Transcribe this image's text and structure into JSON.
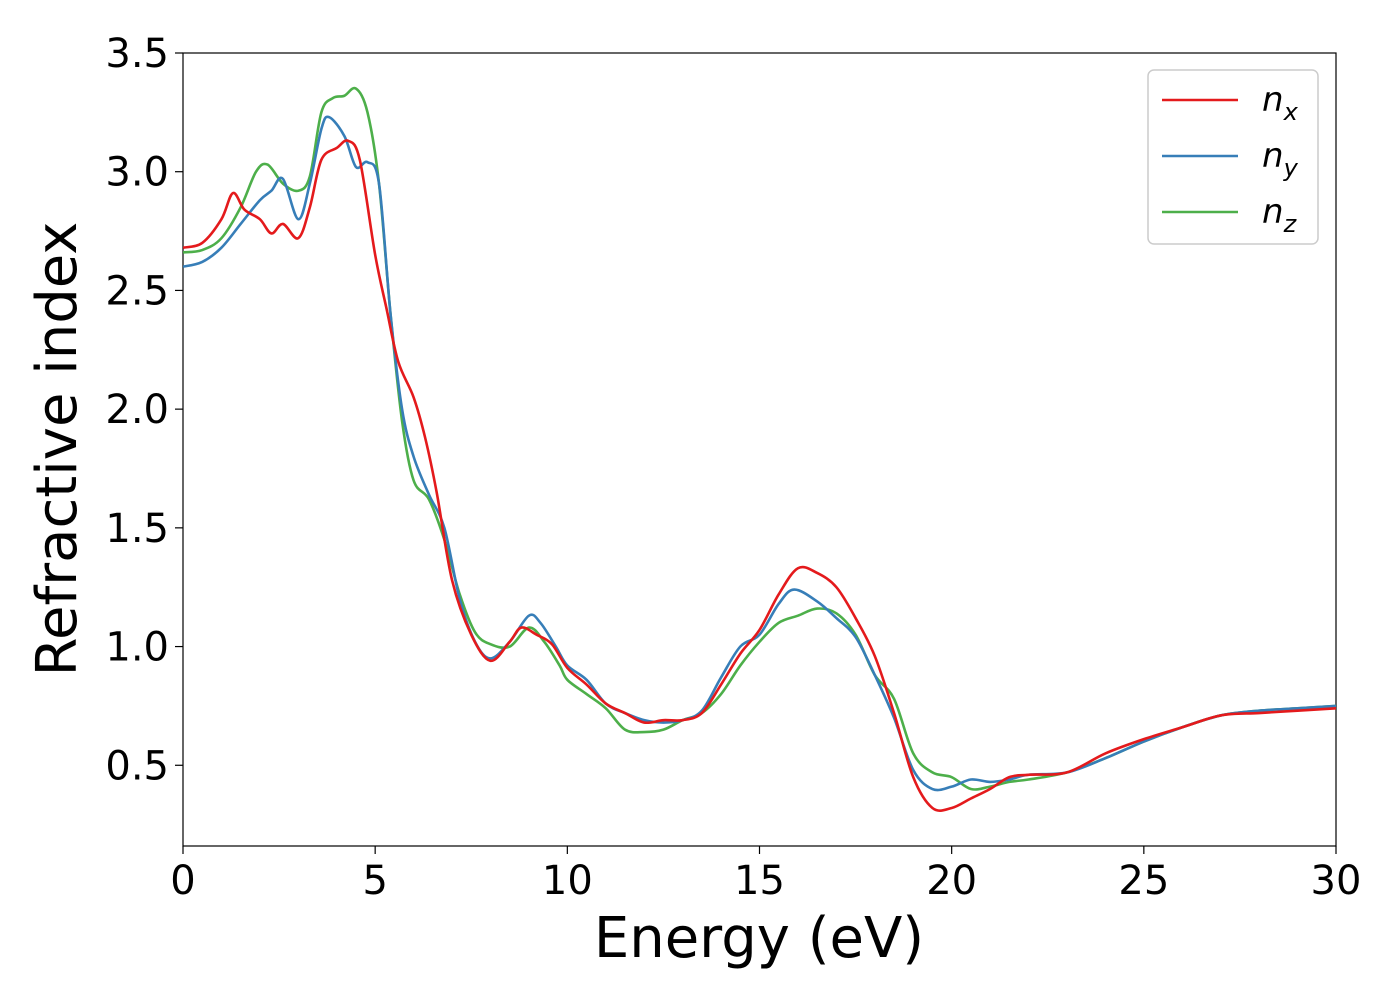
{
  "chart_data": {
    "type": "line",
    "title": "",
    "xlabel": "Energy (eV)",
    "ylabel": "Refractive index",
    "xlim": [
      0,
      30
    ],
    "ylim": [
      0.16,
      3.5
    ],
    "xticks": [
      0,
      5,
      10,
      15,
      20,
      25,
      30
    ],
    "xtick_labels": [
      "0",
      "5",
      "10",
      "15",
      "20",
      "25",
      "30"
    ],
    "yticks": [
      0.5,
      1.0,
      1.5,
      2.0,
      2.5,
      3.0,
      3.5
    ],
    "ytick_labels": [
      "0.5",
      "1.0",
      "1.5",
      "2.0",
      "2.5",
      "3.0",
      "3.5"
    ],
    "grid": false,
    "legend_position": "top-right",
    "series": [
      {
        "name": "n",
        "subscript": "x",
        "color": "#e41a1c",
        "points": [
          [
            0,
            2.68
          ],
          [
            0.5,
            2.7
          ],
          [
            1.0,
            2.8
          ],
          [
            1.3,
            2.91
          ],
          [
            1.6,
            2.84
          ],
          [
            2.0,
            2.8
          ],
          [
            2.3,
            2.74
          ],
          [
            2.6,
            2.78
          ],
          [
            3.0,
            2.72
          ],
          [
            3.3,
            2.85
          ],
          [
            3.6,
            3.05
          ],
          [
            4.0,
            3.1
          ],
          [
            4.3,
            3.13
          ],
          [
            4.6,
            3.05
          ],
          [
            5.0,
            2.65
          ],
          [
            5.3,
            2.42
          ],
          [
            5.6,
            2.2
          ],
          [
            6.0,
            2.05
          ],
          [
            6.3,
            1.88
          ],
          [
            6.6,
            1.65
          ],
          [
            7.0,
            1.28
          ],
          [
            7.5,
            1.05
          ],
          [
            8.0,
            0.94
          ],
          [
            8.5,
            1.02
          ],
          [
            8.8,
            1.08
          ],
          [
            9.2,
            1.05
          ],
          [
            9.6,
            1.01
          ],
          [
            10.0,
            0.91
          ],
          [
            10.5,
            0.84
          ],
          [
            11.0,
            0.76
          ],
          [
            11.5,
            0.72
          ],
          [
            12.0,
            0.68
          ],
          [
            12.5,
            0.69
          ],
          [
            13.0,
            0.69
          ],
          [
            13.5,
            0.72
          ],
          [
            14.0,
            0.84
          ],
          [
            14.5,
            0.97
          ],
          [
            15.0,
            1.07
          ],
          [
            15.5,
            1.22
          ],
          [
            16.0,
            1.33
          ],
          [
            16.5,
            1.31
          ],
          [
            17.0,
            1.25
          ],
          [
            17.5,
            1.12
          ],
          [
            18.0,
            0.96
          ],
          [
            18.5,
            0.72
          ],
          [
            19.0,
            0.45
          ],
          [
            19.5,
            0.32
          ],
          [
            20.0,
            0.32
          ],
          [
            20.5,
            0.36
          ],
          [
            21.0,
            0.4
          ],
          [
            21.5,
            0.45
          ],
          [
            22.0,
            0.46
          ],
          [
            23.0,
            0.47
          ],
          [
            24.0,
            0.55
          ],
          [
            25.0,
            0.61
          ],
          [
            26.0,
            0.66
          ],
          [
            27.0,
            0.71
          ],
          [
            28.0,
            0.72
          ],
          [
            29.0,
            0.73
          ],
          [
            30.0,
            0.74
          ]
        ]
      },
      {
        "name": "n",
        "subscript": "y",
        "color": "#377eb8",
        "points": [
          [
            0,
            2.6
          ],
          [
            0.5,
            2.62
          ],
          [
            1.0,
            2.68
          ],
          [
            1.5,
            2.78
          ],
          [
            2.0,
            2.88
          ],
          [
            2.3,
            2.92
          ],
          [
            2.6,
            2.97
          ],
          [
            3.0,
            2.8
          ],
          [
            3.3,
            2.95
          ],
          [
            3.6,
            3.18
          ],
          [
            3.8,
            3.23
          ],
          [
            4.2,
            3.15
          ],
          [
            4.5,
            3.02
          ],
          [
            4.8,
            3.04
          ],
          [
            5.1,
            2.95
          ],
          [
            5.4,
            2.4
          ],
          [
            5.7,
            2.0
          ],
          [
            6.0,
            1.8
          ],
          [
            6.4,
            1.64
          ],
          [
            6.8,
            1.5
          ],
          [
            7.2,
            1.2
          ],
          [
            7.6,
            1.02
          ],
          [
            8.0,
            0.95
          ],
          [
            8.5,
            1.02
          ],
          [
            9.0,
            1.13
          ],
          [
            9.3,
            1.1
          ],
          [
            9.7,
            1.0
          ],
          [
            10.0,
            0.92
          ],
          [
            10.5,
            0.86
          ],
          [
            11.0,
            0.76
          ],
          [
            11.5,
            0.72
          ],
          [
            12.0,
            0.69
          ],
          [
            12.5,
            0.68
          ],
          [
            13.0,
            0.69
          ],
          [
            13.5,
            0.73
          ],
          [
            14.0,
            0.87
          ],
          [
            14.5,
            1.0
          ],
          [
            15.0,
            1.05
          ],
          [
            15.5,
            1.18
          ],
          [
            15.9,
            1.24
          ],
          [
            16.5,
            1.19
          ],
          [
            17.0,
            1.12
          ],
          [
            17.5,
            1.04
          ],
          [
            18.0,
            0.88
          ],
          [
            18.5,
            0.7
          ],
          [
            19.0,
            0.48
          ],
          [
            19.5,
            0.4
          ],
          [
            20.0,
            0.41
          ],
          [
            20.5,
            0.44
          ],
          [
            21.0,
            0.43
          ],
          [
            21.5,
            0.44
          ],
          [
            22.0,
            0.46
          ],
          [
            23.0,
            0.47
          ],
          [
            24.0,
            0.53
          ],
          [
            25.0,
            0.6
          ],
          [
            26.0,
            0.66
          ],
          [
            27.0,
            0.71
          ],
          [
            28.0,
            0.73
          ],
          [
            29.0,
            0.74
          ],
          [
            30.0,
            0.75
          ]
        ]
      },
      {
        "name": "n",
        "subscript": "z",
        "color": "#4daf4a",
        "points": [
          [
            0,
            2.66
          ],
          [
            0.5,
            2.67
          ],
          [
            1.0,
            2.72
          ],
          [
            1.5,
            2.85
          ],
          [
            1.9,
            3.0
          ],
          [
            2.2,
            3.03
          ],
          [
            2.6,
            2.95
          ],
          [
            3.0,
            2.92
          ],
          [
            3.3,
            2.98
          ],
          [
            3.6,
            3.25
          ],
          [
            3.9,
            3.31
          ],
          [
            4.2,
            3.32
          ],
          [
            4.5,
            3.35
          ],
          [
            4.8,
            3.25
          ],
          [
            5.1,
            2.95
          ],
          [
            5.4,
            2.4
          ],
          [
            5.7,
            1.95
          ],
          [
            6.0,
            1.7
          ],
          [
            6.4,
            1.62
          ],
          [
            6.8,
            1.45
          ],
          [
            7.2,
            1.22
          ],
          [
            7.6,
            1.06
          ],
          [
            8.0,
            1.01
          ],
          [
            8.5,
            1.0
          ],
          [
            9.0,
            1.08
          ],
          [
            9.4,
            1.02
          ],
          [
            9.8,
            0.92
          ],
          [
            10.0,
            0.86
          ],
          [
            10.5,
            0.8
          ],
          [
            11.0,
            0.74
          ],
          [
            11.5,
            0.65
          ],
          [
            12.0,
            0.64
          ],
          [
            12.5,
            0.65
          ],
          [
            13.0,
            0.69
          ],
          [
            13.5,
            0.72
          ],
          [
            14.0,
            0.8
          ],
          [
            14.5,
            0.92
          ],
          [
            15.0,
            1.02
          ],
          [
            15.5,
            1.1
          ],
          [
            16.0,
            1.13
          ],
          [
            16.5,
            1.16
          ],
          [
            17.0,
            1.14
          ],
          [
            17.5,
            1.05
          ],
          [
            18.0,
            0.88
          ],
          [
            18.5,
            0.78
          ],
          [
            19.0,
            0.55
          ],
          [
            19.5,
            0.47
          ],
          [
            20.0,
            0.45
          ],
          [
            20.5,
            0.4
          ],
          [
            21.0,
            0.41
          ],
          [
            21.5,
            0.43
          ],
          [
            22.0,
            0.44
          ],
          [
            23.0,
            0.47
          ],
          [
            24.0,
            0.53
          ],
          [
            25.0,
            0.6
          ],
          [
            26.0,
            0.66
          ],
          [
            27.0,
            0.71
          ],
          [
            28.0,
            0.73
          ],
          [
            29.0,
            0.74
          ],
          [
            30.0,
            0.75
          ]
        ]
      }
    ]
  }
}
